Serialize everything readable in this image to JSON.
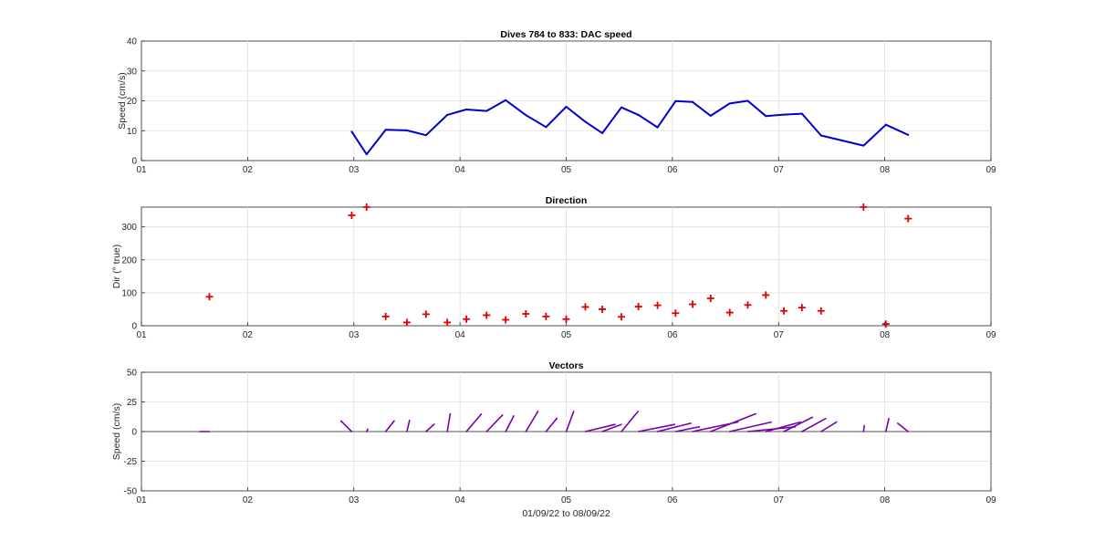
{
  "chart_data": [
    {
      "type": "line",
      "title": "Dives 784 to 833: DAC speed",
      "ylabel": "Speed (cm/s)",
      "xlabel": "",
      "xlim": [
        1,
        9
      ],
      "ylim": [
        0,
        40
      ],
      "grid": true,
      "x_ticks": [
        "01",
        "02",
        "03",
        "04",
        "05",
        "06",
        "07",
        "08",
        "09"
      ],
      "y_ticks": [
        "0",
        "10",
        "20",
        "30",
        "40"
      ],
      "series_color": "#0000cc",
      "x": [
        2.98,
        3.12,
        3.3,
        3.5,
        3.68,
        3.88,
        4.06,
        4.25,
        4.43,
        4.62,
        4.81,
        5.0,
        5.18,
        5.34,
        5.52,
        5.68,
        5.86,
        6.03,
        6.19,
        6.36,
        6.54,
        6.71,
        6.88,
        7.05,
        7.22,
        7.4,
        7.8,
        8.01,
        8.22
      ],
      "values": [
        9.7,
        2.1,
        10.3,
        10.1,
        8.5,
        15.3,
        17.1,
        16.6,
        20.2,
        15.2,
        11.2,
        18.0,
        13.0,
        9.2,
        17.8,
        15.3,
        11.1,
        19.9,
        19.6,
        15.0,
        19.1,
        20.0,
        14.9,
        15.4,
        15.7,
        8.4,
        5.0,
        12.0,
        8.6
      ]
    },
    {
      "type": "scatter",
      "title": "Direction",
      "ylabel": "Dir (° true)",
      "xlabel": "",
      "xlim": [
        1,
        9
      ],
      "ylim": [
        0,
        360
      ],
      "grid": true,
      "x_ticks": [
        "01",
        "02",
        "03",
        "04",
        "05",
        "06",
        "07",
        "08",
        "09"
      ],
      "y_ticks": [
        "0",
        "100",
        "200",
        "300"
      ],
      "series_color": "#e00000",
      "marker": "+",
      "x": [
        1.64,
        2.98,
        3.12,
        3.3,
        3.5,
        3.68,
        3.88,
        4.06,
        4.25,
        4.43,
        4.62,
        4.81,
        5.0,
        5.18,
        5.34,
        5.52,
        5.68,
        5.86,
        6.03,
        6.19,
        6.36,
        6.54,
        6.71,
        6.88,
        7.05,
        7.22,
        7.4,
        7.8,
        8.01,
        8.22
      ],
      "values": [
        88,
        335,
        360,
        28,
        10,
        35,
        10,
        20,
        32,
        18,
        36,
        28,
        20,
        57,
        50,
        27,
        58,
        62,
        38,
        65,
        83,
        40,
        63,
        93,
        45,
        55,
        45,
        360,
        5,
        325
      ]
    },
    {
      "type": "vector",
      "title": "Vectors",
      "ylabel": "Speed (cm/s)",
      "xlabel": "01/09/22 to 08/09/22",
      "xlim": [
        1,
        9
      ],
      "ylim": [
        -50,
        50
      ],
      "grid": true,
      "x_ticks": [
        "01",
        "02",
        "03",
        "04",
        "05",
        "06",
        "07",
        "08",
        "09"
      ],
      "y_ticks": [
        "-50",
        "-25",
        "0",
        "25",
        "50"
      ],
      "series_color": "#7700aa",
      "x": [
        1.64,
        2.98,
        3.12,
        3.3,
        3.5,
        3.68,
        3.88,
        4.06,
        4.25,
        4.43,
        4.62,
        4.81,
        5.0,
        5.18,
        5.34,
        5.52,
        5.68,
        5.86,
        6.03,
        6.19,
        6.36,
        6.54,
        6.71,
        6.88,
        7.05,
        7.22,
        7.4,
        7.8,
        8.01,
        8.22
      ],
      "u": [
        -8,
        -9,
        1,
        7.2,
        2.2,
        6.9,
        2.5,
        12.6,
        13.5,
        6.8,
        10.2,
        9.2,
        6.3,
        25,
        16,
        14,
        30.5,
        28,
        20,
        38,
        38,
        35,
        40,
        29,
        24,
        20,
        13,
        0.6,
        2.5,
        -8.8
      ],
      "v": [
        0,
        9,
        2,
        9,
        9.5,
        6.2,
        15,
        14.8,
        14,
        13.2,
        17,
        11.2,
        17,
        6,
        6,
        17,
        6,
        7,
        4,
        8,
        15,
        8,
        4,
        8,
        12,
        11,
        8,
        5,
        11,
        7
      ]
    }
  ]
}
